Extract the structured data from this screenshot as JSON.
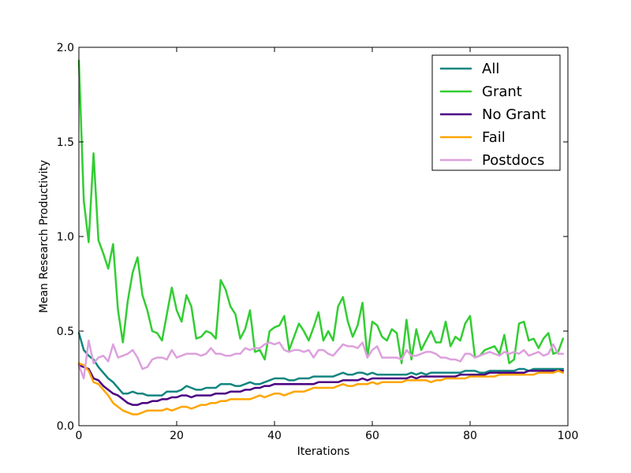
{
  "chart_data": {
    "type": "line",
    "title": "",
    "xlabel": "Iterations",
    "ylabel": "Mean Research Productivity",
    "xlim": [
      0,
      100
    ],
    "ylim": [
      0.0,
      2.0
    ],
    "xticks": [
      0,
      20,
      40,
      60,
      80,
      100
    ],
    "yticks": [
      0.0,
      0.5,
      1.0,
      1.5,
      2.0
    ],
    "xtick_labels": [
      "0",
      "20",
      "40",
      "60",
      "80",
      "100"
    ],
    "ytick_labels": [
      "0.0",
      "0.5",
      "1.0",
      "1.5",
      "2.0"
    ],
    "grid": false,
    "legend_position": "top-right",
    "x": [
      0,
      1,
      2,
      3,
      4,
      5,
      6,
      7,
      8,
      9,
      10,
      11,
      12,
      13,
      14,
      15,
      16,
      17,
      18,
      19,
      20,
      21,
      22,
      23,
      24,
      25,
      26,
      27,
      28,
      29,
      30,
      31,
      32,
      33,
      34,
      35,
      36,
      37,
      38,
      39,
      40,
      41,
      42,
      43,
      44,
      45,
      46,
      47,
      48,
      49,
      50,
      51,
      52,
      53,
      54,
      55,
      56,
      57,
      58,
      59,
      60,
      61,
      62,
      63,
      64,
      65,
      66,
      67,
      68,
      69,
      70,
      71,
      72,
      73,
      74,
      75,
      76,
      77,
      78,
      79,
      80,
      81,
      82,
      83,
      84,
      85,
      86,
      87,
      88,
      89,
      90,
      91,
      92,
      93,
      94,
      95,
      96,
      97,
      98,
      99
    ],
    "series": [
      {
        "name": "All",
        "color": "#138580",
        "values": [
          0.49,
          0.4,
          0.37,
          0.35,
          0.31,
          0.28,
          0.25,
          0.23,
          0.2,
          0.17,
          0.17,
          0.18,
          0.17,
          0.17,
          0.16,
          0.16,
          0.16,
          0.16,
          0.18,
          0.18,
          0.18,
          0.19,
          0.21,
          0.2,
          0.19,
          0.19,
          0.2,
          0.2,
          0.2,
          0.22,
          0.22,
          0.22,
          0.21,
          0.21,
          0.22,
          0.23,
          0.22,
          0.22,
          0.23,
          0.24,
          0.25,
          0.25,
          0.25,
          0.24,
          0.24,
          0.25,
          0.25,
          0.25,
          0.26,
          0.26,
          0.26,
          0.26,
          0.26,
          0.27,
          0.28,
          0.27,
          0.27,
          0.28,
          0.28,
          0.27,
          0.28,
          0.27,
          0.27,
          0.27,
          0.27,
          0.27,
          0.27,
          0.27,
          0.28,
          0.27,
          0.28,
          0.27,
          0.28,
          0.28,
          0.28,
          0.28,
          0.28,
          0.28,
          0.28,
          0.29,
          0.29,
          0.29,
          0.28,
          0.28,
          0.29,
          0.29,
          0.29,
          0.29,
          0.29,
          0.29,
          0.3,
          0.3,
          0.29,
          0.3,
          0.3,
          0.3,
          0.3,
          0.3,
          0.3,
          0.3
        ]
      },
      {
        "name": "Grant",
        "color": "#32CD32",
        "values": [
          1.93,
          1.19,
          0.97,
          1.44,
          0.98,
          0.91,
          0.83,
          0.96,
          0.61,
          0.44,
          0.66,
          0.81,
          0.89,
          0.69,
          0.61,
          0.5,
          0.49,
          0.45,
          0.59,
          0.73,
          0.61,
          0.55,
          0.69,
          0.63,
          0.46,
          0.47,
          0.5,
          0.49,
          0.46,
          0.77,
          0.72,
          0.63,
          0.59,
          0.46,
          0.51,
          0.61,
          0.39,
          0.4,
          0.35,
          0.5,
          0.52,
          0.53,
          0.58,
          0.4,
          0.47,
          0.54,
          0.5,
          0.45,
          0.52,
          0.6,
          0.45,
          0.5,
          0.45,
          0.63,
          0.68,
          0.55,
          0.47,
          0.53,
          0.65,
          0.36,
          0.55,
          0.53,
          0.47,
          0.45,
          0.51,
          0.49,
          0.33,
          0.56,
          0.35,
          0.51,
          0.4,
          0.45,
          0.5,
          0.44,
          0.44,
          0.55,
          0.42,
          0.47,
          0.45,
          0.54,
          0.58,
          0.36,
          0.37,
          0.4,
          0.41,
          0.42,
          0.38,
          0.48,
          0.33,
          0.35,
          0.54,
          0.55,
          0.45,
          0.46,
          0.41,
          0.46,
          0.49,
          0.38,
          0.39,
          0.46
        ]
      },
      {
        "name": "No Grant",
        "color": "#4B0082",
        "values": [
          0.32,
          0.31,
          0.3,
          0.25,
          0.24,
          0.21,
          0.19,
          0.17,
          0.16,
          0.14,
          0.12,
          0.11,
          0.11,
          0.12,
          0.12,
          0.13,
          0.13,
          0.14,
          0.14,
          0.15,
          0.15,
          0.16,
          0.16,
          0.15,
          0.16,
          0.16,
          0.16,
          0.16,
          0.17,
          0.17,
          0.17,
          0.18,
          0.18,
          0.18,
          0.19,
          0.19,
          0.2,
          0.2,
          0.21,
          0.21,
          0.22,
          0.22,
          0.22,
          0.22,
          0.22,
          0.22,
          0.22,
          0.22,
          0.22,
          0.23,
          0.23,
          0.23,
          0.23,
          0.23,
          0.24,
          0.24,
          0.24,
          0.24,
          0.25,
          0.24,
          0.25,
          0.25,
          0.25,
          0.25,
          0.25,
          0.25,
          0.25,
          0.25,
          0.26,
          0.25,
          0.26,
          0.26,
          0.26,
          0.26,
          0.26,
          0.26,
          0.26,
          0.26,
          0.27,
          0.27,
          0.27,
          0.27,
          0.27,
          0.27,
          0.28,
          0.28,
          0.28,
          0.28,
          0.28,
          0.28,
          0.28,
          0.28,
          0.29,
          0.29,
          0.29,
          0.29,
          0.29,
          0.29,
          0.29,
          0.29
        ]
      },
      {
        "name": "Fail",
        "color": "#FFA500",
        "values": [
          0.33,
          0.32,
          0.29,
          0.23,
          0.22,
          0.19,
          0.16,
          0.12,
          0.1,
          0.08,
          0.07,
          0.06,
          0.06,
          0.07,
          0.08,
          0.08,
          0.08,
          0.08,
          0.09,
          0.08,
          0.09,
          0.1,
          0.1,
          0.09,
          0.1,
          0.11,
          0.11,
          0.12,
          0.12,
          0.13,
          0.13,
          0.14,
          0.14,
          0.14,
          0.14,
          0.14,
          0.15,
          0.16,
          0.15,
          0.16,
          0.17,
          0.17,
          0.16,
          0.17,
          0.18,
          0.18,
          0.18,
          0.19,
          0.2,
          0.2,
          0.2,
          0.2,
          0.2,
          0.21,
          0.22,
          0.21,
          0.21,
          0.22,
          0.22,
          0.22,
          0.23,
          0.22,
          0.23,
          0.23,
          0.23,
          0.23,
          0.23,
          0.24,
          0.24,
          0.24,
          0.24,
          0.24,
          0.23,
          0.24,
          0.24,
          0.25,
          0.25,
          0.25,
          0.25,
          0.25,
          0.26,
          0.26,
          0.26,
          0.26,
          0.26,
          0.26,
          0.27,
          0.27,
          0.27,
          0.27,
          0.27,
          0.27,
          0.27,
          0.27,
          0.28,
          0.28,
          0.28,
          0.28,
          0.29,
          0.28
        ]
      },
      {
        "name": "Postdocs",
        "color": "#DDA0DD",
        "values": [
          0.32,
          0.25,
          0.45,
          0.33,
          0.36,
          0.37,
          0.34,
          0.43,
          0.36,
          0.37,
          0.38,
          0.4,
          0.36,
          0.3,
          0.31,
          0.35,
          0.36,
          0.36,
          0.35,
          0.4,
          0.36,
          0.37,
          0.38,
          0.38,
          0.38,
          0.37,
          0.38,
          0.41,
          0.38,
          0.38,
          0.37,
          0.37,
          0.38,
          0.38,
          0.41,
          0.4,
          0.41,
          0.41,
          0.43,
          0.44,
          0.43,
          0.44,
          0.4,
          0.39,
          0.4,
          0.4,
          0.39,
          0.4,
          0.36,
          0.4,
          0.4,
          0.38,
          0.37,
          0.4,
          0.43,
          0.42,
          0.42,
          0.41,
          0.44,
          0.36,
          0.4,
          0.42,
          0.36,
          0.36,
          0.36,
          0.36,
          0.35,
          0.4,
          0.37,
          0.37,
          0.38,
          0.39,
          0.39,
          0.38,
          0.36,
          0.36,
          0.35,
          0.35,
          0.34,
          0.38,
          0.38,
          0.36,
          0.37,
          0.38,
          0.39,
          0.38,
          0.37,
          0.39,
          0.38,
          0.39,
          0.38,
          0.4,
          0.37,
          0.38,
          0.39,
          0.37,
          0.38,
          0.43,
          0.38,
          0.38
        ]
      }
    ]
  }
}
